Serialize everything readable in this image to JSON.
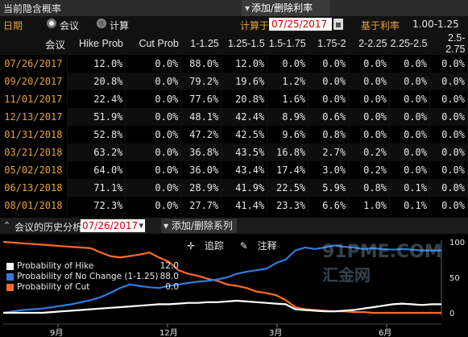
{
  "header": {
    "title": "当前隐含概率",
    "add_remove_rates": "添加/删除利率"
  },
  "controls": {
    "date_label": "日期",
    "radio_meeting": "会议",
    "radio_calc": "计算",
    "calc_on_label": "计算于",
    "calc_date": "07/25/2017",
    "base_rate_label": "基于利率",
    "base_rate_value": "1.00-1.25"
  },
  "table": {
    "headers": [
      "会议",
      "Hike Prob",
      "Cut Prob",
      "1-1.25",
      "1.25-1.5",
      "1.5-1.75",
      "1.75-2",
      "2-2.25",
      "2.25-2.5",
      "2.5-2.75"
    ],
    "rows": [
      [
        "07/26/2017",
        "12.0%",
        "0.0%",
        "88.0%",
        "12.0%",
        "0.0%",
        "0.0%",
        "0.0%",
        "0.0%",
        "0.0%"
      ],
      [
        "09/20/2017",
        "20.8%",
        "0.0%",
        "79.2%",
        "19.6%",
        "1.2%",
        "0.0%",
        "0.0%",
        "0.0%",
        "0.0%"
      ],
      [
        "11/01/2017",
        "22.4%",
        "0.0%",
        "77.6%",
        "20.8%",
        "1.6%",
        "0.0%",
        "0.0%",
        "0.0%",
        "0.0%"
      ],
      [
        "12/13/2017",
        "51.9%",
        "0.0%",
        "48.1%",
        "42.4%",
        "8.9%",
        "0.6%",
        "0.0%",
        "0.0%",
        "0.0%"
      ],
      [
        "01/31/2018",
        "52.8%",
        "0.0%",
        "47.2%",
        "42.5%",
        "9.6%",
        "0.8%",
        "0.0%",
        "0.0%",
        "0.0%"
      ],
      [
        "03/21/2018",
        "63.2%",
        "0.0%",
        "36.8%",
        "43.5%",
        "16.8%",
        "2.7%",
        "0.2%",
        "0.0%",
        "0.0%"
      ],
      [
        "05/02/2018",
        "64.0%",
        "0.0%",
        "36.0%",
        "43.4%",
        "17.4%",
        "3.0%",
        "0.2%",
        "0.0%",
        "0.0%"
      ],
      [
        "06/13/2018",
        "71.1%",
        "0.0%",
        "28.9%",
        "41.9%",
        "22.5%",
        "5.9%",
        "0.8%",
        "0.1%",
        "0.0%"
      ],
      [
        "08/01/2018",
        "72.3%",
        "0.0%",
        "27.7%",
        "41.4%",
        "23.3%",
        "6.6%",
        "1.0%",
        "0.1%",
        "0.0%"
      ]
    ]
  },
  "history": {
    "title": "会议的历史分析",
    "meeting_select": "07/26/2017",
    "add_remove_series": "添加/删除系列",
    "tool_trace": "追踪",
    "tool_annotate": "注释"
  },
  "chart_data": {
    "type": "line",
    "x_ticks": [
      "9月",
      "12月",
      "3月",
      "6月"
    ],
    "y_ticks_right": [
      0,
      50,
      100
    ],
    "ylim": [
      0,
      100
    ],
    "series": [
      {
        "name": "Probability of Hike",
        "value": "12.0",
        "color": "#ffffff",
        "values": [
          0,
          0,
          0,
          0,
          0,
          1,
          2,
          3,
          4,
          5,
          6,
          7,
          8,
          9,
          10,
          11,
          12,
          12,
          13,
          14,
          14,
          15,
          15,
          16,
          17,
          16,
          15,
          14,
          13,
          12,
          5,
          4,
          3,
          2,
          2,
          3,
          4,
          6,
          8,
          10,
          12,
          13,
          12,
          11,
          12,
          12
        ]
      },
      {
        "name": "Probability of No Change (1-1.25)",
        "value": "88.0",
        "color": "#2f7be0",
        "values": [
          0,
          2,
          4,
          5,
          6,
          8,
          10,
          12,
          15,
          18,
          22,
          28,
          35,
          40,
          38,
          36,
          35,
          38,
          40,
          42,
          44,
          45,
          47,
          50,
          55,
          58,
          60,
          62,
          70,
          75,
          88,
          92,
          90,
          92,
          95,
          93,
          92,
          90,
          91,
          90,
          89,
          90,
          89,
          88,
          88,
          88
        ]
      },
      {
        "name": "Probability of Cut",
        "value": "0.0",
        "color": "#ff6a28",
        "values": [
          100,
          99,
          98,
          97,
          96,
          95,
          94,
          93,
          92,
          91,
          85,
          80,
          78,
          80,
          82,
          85,
          78,
          72,
          60,
          55,
          52,
          48,
          45,
          40,
          38,
          35,
          30,
          28,
          25,
          18,
          8,
          5,
          4,
          3,
          2,
          2,
          1,
          1,
          0,
          0,
          0,
          0,
          0,
          0,
          0,
          0
        ]
      }
    ]
  },
  "watermark": {
    "line1": "91PME.COM",
    "line2": "汇金网"
  },
  "colors": {
    "accent": "#e8a33c",
    "cut": "#ff6a28",
    "nochange": "#2f7be0",
    "hike": "#ffffff"
  }
}
